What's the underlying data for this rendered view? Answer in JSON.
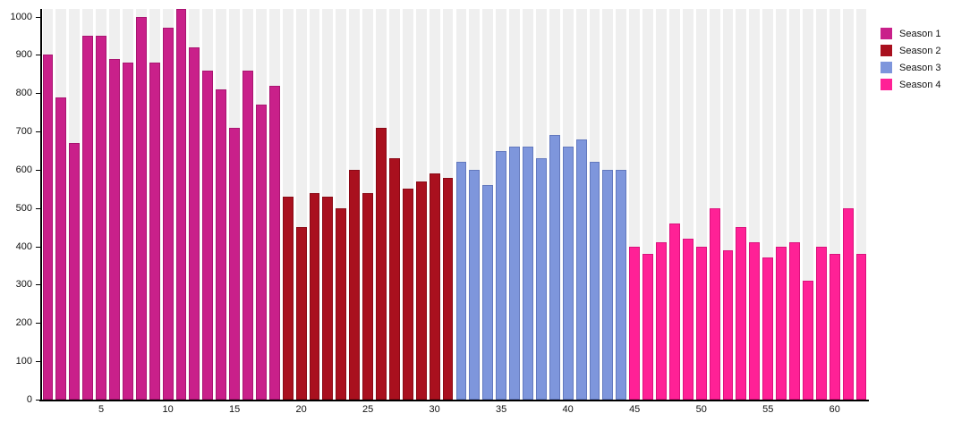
{
  "chart_data": {
    "type": "bar",
    "title": "",
    "xlabel": "",
    "ylabel": "",
    "ylim": [
      0,
      1020
    ],
    "y_ticks": [
      0,
      100,
      200,
      300,
      400,
      500,
      600,
      700,
      800,
      900,
      1000
    ],
    "x_ticks": [
      5,
      10,
      15,
      20,
      25,
      30,
      35,
      40,
      45,
      50,
      55,
      60
    ],
    "grid": "vertical-bands",
    "legend_position": "top-right",
    "series": [
      {
        "name": "Season 1",
        "color": "#C9208A",
        "border_color": "#A91571",
        "values": [
          900,
          790,
          670,
          950,
          950,
          890,
          880,
          1000,
          880,
          970,
          1020,
          920,
          860,
          810,
          710,
          860,
          770,
          820
        ]
      },
      {
        "name": "Season 2",
        "color": "#A9101E",
        "border_color": "#8A0A16",
        "values": [
          530,
          450,
          540,
          530,
          500,
          600,
          540,
          710,
          630,
          550,
          570,
          590,
          580
        ]
      },
      {
        "name": "Season 3",
        "color": "#7E96DC",
        "border_color": "#6379BE",
        "values": [
          620,
          600,
          560,
          650,
          660,
          660,
          630,
          690,
          660,
          680,
          620,
          600,
          600
        ]
      },
      {
        "name": "Season 4",
        "color": "#FF2196",
        "border_color": "#DB127C",
        "values": [
          400,
          380,
          410,
          460,
          420,
          400,
          500,
          390,
          450,
          410,
          370,
          400,
          410,
          310,
          400,
          380,
          500,
          380
        ]
      }
    ],
    "colors": {
      "plot_band": "#EFEFEF",
      "plot_gap": "#FFFFFF",
      "axis": "#000000",
      "tick_text": "#111111",
      "background": "#FFFFFF"
    }
  }
}
